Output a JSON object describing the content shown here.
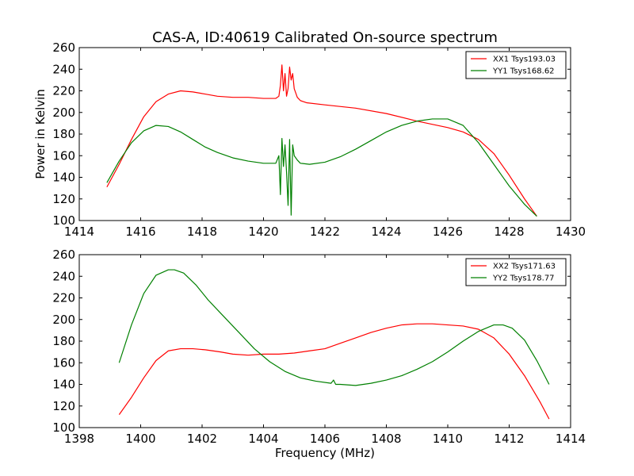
{
  "chart_data": [
    {
      "type": "line",
      "title": "CAS-A, ID:40619 Calibrated On-source spectrum",
      "xlabel": "",
      "ylabel": "Power in Kelvin",
      "xlim": [
        1414,
        1430
      ],
      "ylim": [
        100,
        260
      ],
      "xticks": [
        1414,
        1416,
        1418,
        1420,
        1422,
        1424,
        1426,
        1428,
        1430
      ],
      "yticks": [
        100,
        120,
        140,
        160,
        180,
        200,
        220,
        240,
        260
      ],
      "grid": false,
      "legend_position": "top-right",
      "series": [
        {
          "name": "XX1 Tsys193.03",
          "color": "#ff0000",
          "x": [
            1414.9,
            1415.3,
            1415.7,
            1416.1,
            1416.5,
            1416.9,
            1417.3,
            1417.7,
            1418.1,
            1418.5,
            1419.0,
            1419.5,
            1420.0,
            1420.4,
            1420.5,
            1420.55,
            1420.6,
            1420.65,
            1420.7,
            1420.75,
            1420.8,
            1420.85,
            1420.9,
            1420.95,
            1421.0,
            1421.05,
            1421.1,
            1421.2,
            1421.4,
            1422.0,
            1423.0,
            1424.0,
            1425.0,
            1426.0,
            1426.5,
            1427.0,
            1427.5,
            1428.0,
            1428.5,
            1428.9
          ],
          "y": [
            131,
            152,
            175,
            196,
            210,
            217,
            220,
            219,
            217,
            215,
            214,
            214,
            213,
            213,
            215,
            225,
            244,
            220,
            236,
            215,
            222,
            242,
            230,
            236,
            222,
            218,
            214,
            211,
            209,
            207,
            204,
            199,
            192,
            186,
            182,
            175,
            162,
            142,
            120,
            104
          ]
        },
        {
          "name": "YY1 Tsys168.62",
          "color": "#008000",
          "x": [
            1414.9,
            1415.3,
            1415.7,
            1416.1,
            1416.5,
            1416.9,
            1417.3,
            1417.7,
            1418.1,
            1418.5,
            1419.0,
            1419.5,
            1420.0,
            1420.4,
            1420.5,
            1420.55,
            1420.6,
            1420.65,
            1420.7,
            1420.75,
            1420.8,
            1420.85,
            1420.9,
            1420.95,
            1421.0,
            1421.05,
            1421.1,
            1421.2,
            1421.5,
            1422.0,
            1422.5,
            1423.0,
            1423.5,
            1424.0,
            1424.5,
            1425.0,
            1425.5,
            1426.0,
            1426.5,
            1427.0,
            1427.5,
            1428.0,
            1428.5,
            1428.9
          ],
          "y": [
            135,
            155,
            172,
            183,
            188,
            187,
            182,
            175,
            168,
            163,
            158,
            155,
            153,
            153,
            160,
            124,
            176,
            150,
            170,
            145,
            114,
            175,
            105,
            170,
            160,
            158,
            156,
            153,
            152,
            154,
            159,
            166,
            174,
            182,
            188,
            192,
            194,
            194,
            188,
            172,
            152,
            132,
            115,
            104
          ]
        }
      ]
    },
    {
      "type": "line",
      "title": "",
      "xlabel": "Frequency (MHz)",
      "ylabel": "",
      "xlim": [
        1398,
        1414
      ],
      "ylim": [
        100,
        260
      ],
      "xticks": [
        1398,
        1400,
        1402,
        1404,
        1406,
        1408,
        1410,
        1412,
        1414
      ],
      "yticks": [
        100,
        120,
        140,
        160,
        180,
        200,
        220,
        240,
        260
      ],
      "grid": false,
      "legend_position": "top-right",
      "series": [
        {
          "name": "XX2 Tsys171.63",
          "color": "#ff0000",
          "x": [
            1399.3,
            1399.7,
            1400.1,
            1400.5,
            1400.9,
            1401.3,
            1401.7,
            1402.1,
            1402.6,
            1403.0,
            1403.5,
            1404.0,
            1404.5,
            1405.0,
            1405.5,
            1406.0,
            1406.5,
            1407.0,
            1407.5,
            1408.0,
            1408.5,
            1409.0,
            1409.5,
            1410.0,
            1410.5,
            1411.0,
            1411.5,
            1412.0,
            1412.5,
            1413.0,
            1413.3
          ],
          "y": [
            112,
            128,
            146,
            162,
            171,
            173,
            173,
            172,
            170,
            168,
            167,
            168,
            168,
            169,
            171,
            173,
            178,
            183,
            188,
            192,
            195,
            196,
            196,
            195,
            194,
            191,
            183,
            168,
            148,
            124,
            108
          ]
        },
        {
          "name": "YY2 Tsys178.77",
          "color": "#008000",
          "x": [
            1399.3,
            1399.7,
            1400.1,
            1400.5,
            1400.9,
            1401.1,
            1401.4,
            1401.8,
            1402.2,
            1402.7,
            1403.2,
            1403.7,
            1404.2,
            1404.7,
            1405.2,
            1405.7,
            1406.2,
            1406.28,
            1406.35,
            1406.5,
            1407.0,
            1407.5,
            1408.0,
            1408.5,
            1409.0,
            1409.5,
            1410.0,
            1410.5,
            1411.0,
            1411.5,
            1411.8,
            1412.1,
            1412.5,
            1412.9,
            1413.3
          ],
          "y": [
            160,
            195,
            224,
            241,
            246,
            246,
            243,
            232,
            218,
            203,
            188,
            173,
            161,
            152,
            146,
            143,
            141,
            144,
            140,
            140,
            139,
            141,
            144,
            148,
            154,
            161,
            170,
            180,
            189,
            195,
            195,
            192,
            181,
            162,
            140
          ]
        }
      ]
    }
  ]
}
